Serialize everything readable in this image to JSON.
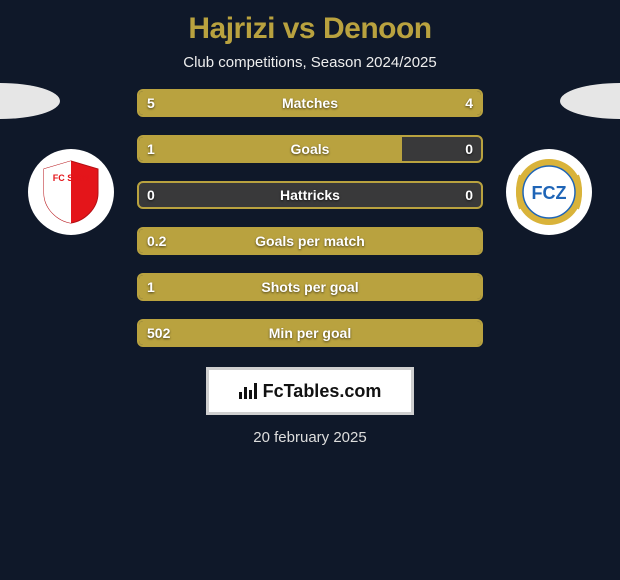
{
  "title": {
    "player1": "Hajrizi",
    "vs": "vs",
    "player2": "Denoon",
    "color": "#b9a23f"
  },
  "subtitle": "Club competitions, Season 2024/2025",
  "clubs": {
    "left": {
      "name": "FC Sion",
      "shield_fill": "#e4151a",
      "shield_text": "FC SION",
      "shield_text_color": "#ffffff"
    },
    "right": {
      "name": "FC Zürich",
      "ring_color": "#d9b33a",
      "inner_fill": "#ffffff",
      "letters": "FCZ",
      "letters_color": "#1f65b7"
    }
  },
  "colors": {
    "background": "#0f1829",
    "bar_fill": "#b9a23f",
    "bar_track": "#39393a",
    "bar_border": "#b9a23f",
    "text": "#ffffff"
  },
  "stats": [
    {
      "label": "Matches",
      "left_value": "5",
      "right_value": "4",
      "left_pct": 55,
      "right_pct": 45
    },
    {
      "label": "Goals",
      "left_value": "1",
      "right_value": "0",
      "left_pct": 77,
      "right_pct": 0
    },
    {
      "label": "Hattricks",
      "left_value": "0",
      "right_value": "0",
      "left_pct": 0,
      "right_pct": 0
    },
    {
      "label": "Goals per match",
      "left_value": "0.2",
      "right_value": "",
      "left_pct": 100,
      "right_pct": 0
    },
    {
      "label": "Shots per goal",
      "left_value": "1",
      "right_value": "",
      "left_pct": 100,
      "right_pct": 0
    },
    {
      "label": "Min per goal",
      "left_value": "502",
      "right_value": "",
      "left_pct": 100,
      "right_pct": 0
    }
  ],
  "brand": {
    "name": "FcTables.com"
  },
  "date": "20 february 2025"
}
